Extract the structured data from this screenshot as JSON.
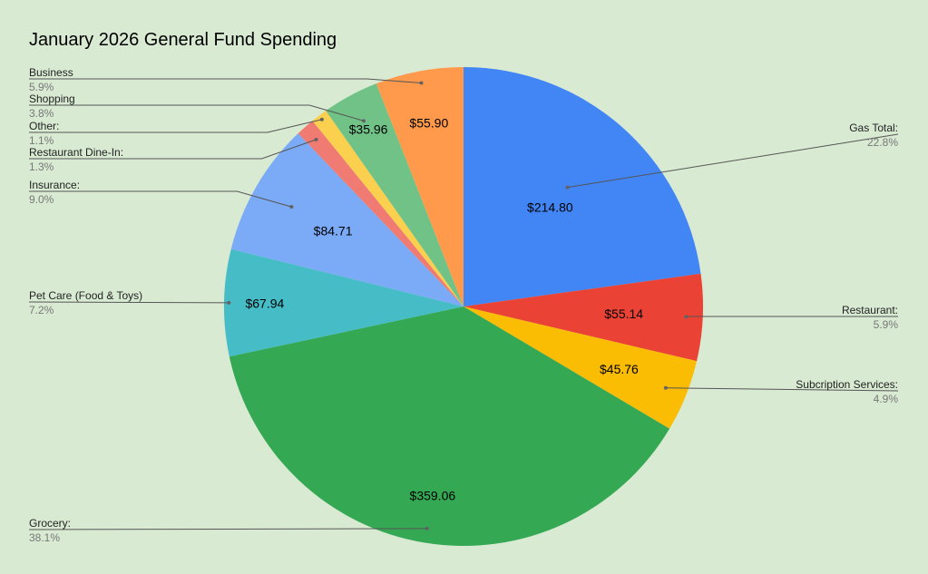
{
  "chart_data": {
    "type": "pie",
    "title": "January 2026 General Fund Spending",
    "slices": [
      {
        "label": "Gas Total:",
        "value": 214.8,
        "value_label": "$214.80",
        "percent_label": "22.8%",
        "color": "#4285f4"
      },
      {
        "label": "Restaurant:",
        "value": 55.14,
        "value_label": "$55.14",
        "percent_label": "5.9%",
        "color": "#ea4335"
      },
      {
        "label": "Subcription Services:",
        "value": 45.76,
        "value_label": "$45.76",
        "percent_label": "4.9%",
        "color": "#fbbc04"
      },
      {
        "label": "Grocery:",
        "value": 359.06,
        "value_label": "$359.06",
        "percent_label": "38.1%",
        "color": "#34a853"
      },
      {
        "label": "Pet Care (Food & Toys)",
        "value": 67.94,
        "value_label": "$67.94",
        "percent_label": "7.2%",
        "color": "#46bdc6"
      },
      {
        "label": "Insurance:",
        "value": 84.71,
        "value_label": "$84.71",
        "percent_label": "9.0%",
        "color": "#7baaf7"
      },
      {
        "label": "Restaurant Dine-In:",
        "value": 12.0,
        "value_label": "",
        "percent_label": "1.3%",
        "color": "#f07b72"
      },
      {
        "label": "Other:",
        "value": 10.5,
        "value_label": "",
        "percent_label": "1.1%",
        "color": "#fcd04f"
      },
      {
        "label": "Shopping",
        "value": 35.96,
        "value_label": "$35.96",
        "percent_label": "3.8%",
        "color": "#71c287"
      },
      {
        "label": "Business",
        "value": 55.9,
        "value_label": "$55.90",
        "percent_label": "5.9%",
        "color": "#ff9a4d"
      }
    ],
    "start_angle": "12 o'clock",
    "direction": "clockwise",
    "legend": "none",
    "labels": "outside with leader lines"
  }
}
